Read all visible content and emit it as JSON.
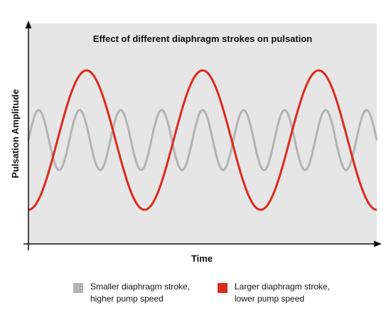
{
  "chart_data": {
    "type": "line",
    "title": "Effect of different diaphragm strokes on pulsation",
    "xlabel": "Time",
    "ylabel": "Pulsation Amplitude",
    "x_range": [
      0,
      1
    ],
    "y_range": [
      -1.45,
      1.45
    ],
    "grid": false,
    "legend_placement": "bottom",
    "series": [
      {
        "name": "Smaller diaphragm stroke, higher pump speed",
        "color": "#b3b3b3",
        "waveform": "sine",
        "amplitude": 0.43,
        "cycles": 8.5,
        "phase_at_start": "rising from mid-level"
      },
      {
        "name": "Larger diaphragm stroke, lower pump speed",
        "color": "#dd2a1e",
        "waveform": "sine",
        "amplitude": 1.0,
        "cycles": 3.0,
        "phase_at_start": "trough"
      }
    ]
  },
  "legend": [
    {
      "line1": "Smaller diaphragm stroke,",
      "line2": "higher pump speed",
      "color": "#b3b3b3"
    },
    {
      "line1": "Larger diaphragm stroke,",
      "line2": "lower pump speed",
      "color": "#dd2a1e"
    }
  ],
  "colors": {
    "plot_background": "#e6e6e6",
    "axis": "#111111"
  }
}
